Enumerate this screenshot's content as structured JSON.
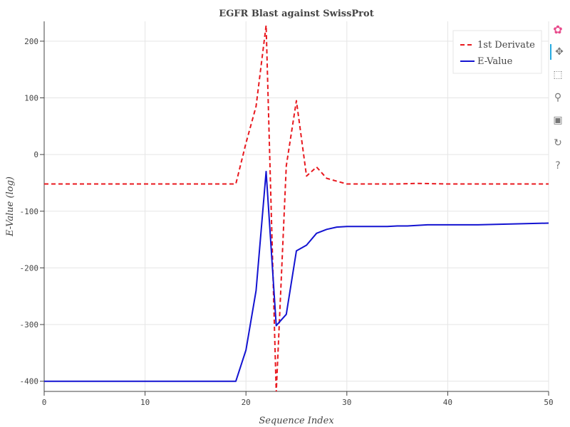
{
  "chart_data": {
    "type": "line",
    "title": "EGFR Blast against SwissProt",
    "xlabel": "Sequence Index",
    "ylabel": "E-Value (log)",
    "xlim": [
      0,
      50
    ],
    "ylim": [
      -418,
      235
    ],
    "xticks": [
      0,
      10,
      20,
      30,
      40,
      50
    ],
    "yticks": [
      -400,
      -300,
      -200,
      -100,
      0,
      100,
      200
    ],
    "grid": true,
    "legend_position": "top-right",
    "series": [
      {
        "name": "1st Derivate",
        "color": "#e8191f",
        "dash": "dashed",
        "x": [
          0,
          19,
          20,
          21,
          22,
          23,
          24,
          25,
          26,
          27,
          28,
          29,
          30,
          35,
          37,
          40,
          50
        ],
        "y": [
          -52,
          -52,
          20,
          85,
          228,
          -420,
          -20,
          95,
          -38,
          -22,
          -42,
          -47,
          -52,
          -52,
          -51,
          -52,
          -52
        ]
      },
      {
        "name": "E-Value",
        "color": "#1313d1",
        "dash": "solid",
        "x": [
          0,
          19,
          20,
          21,
          22,
          23,
          24,
          25,
          26,
          27,
          28,
          29,
          30,
          34,
          35,
          36,
          38,
          40,
          43,
          50
        ],
        "y": [
          -400,
          -400,
          -345,
          -240,
          -30,
          -302,
          -282,
          -170,
          -160,
          -139,
          -132,
          -128,
          -127,
          -127,
          -126,
          -126,
          -124,
          -124,
          -124,
          -121
        ]
      }
    ]
  },
  "toolbar": {
    "tools": [
      {
        "name": "bokeh-logo-icon",
        "glyph": "✿"
      },
      {
        "name": "pan-icon",
        "glyph": "✥"
      },
      {
        "name": "box-zoom-icon",
        "glyph": "⬚"
      },
      {
        "name": "wheel-zoom-icon",
        "glyph": "⚲"
      },
      {
        "name": "save-icon",
        "glyph": "▣"
      },
      {
        "name": "reset-icon",
        "glyph": "↻"
      },
      {
        "name": "help-icon",
        "glyph": "?"
      }
    ]
  }
}
